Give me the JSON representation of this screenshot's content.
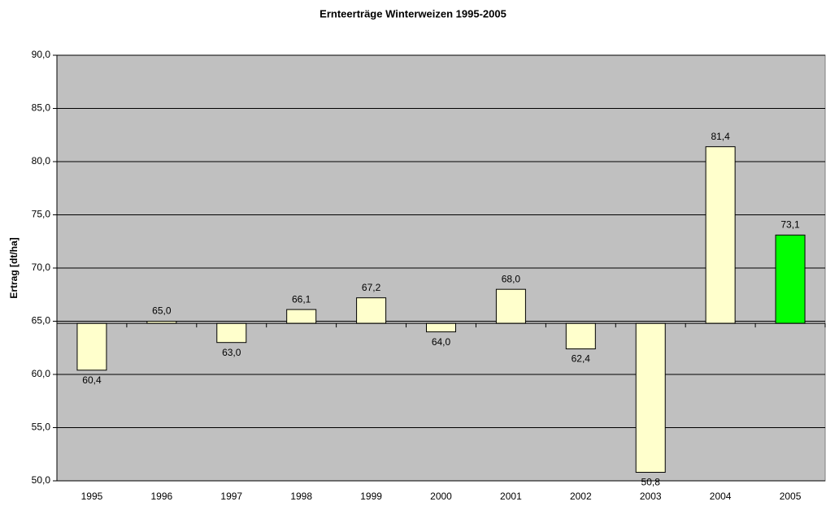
{
  "chart_data": {
    "type": "bar",
    "title": "Ernteerträge Winterweizen 1995-2005",
    "y_label": "Ertrag [dt/ha]",
    "categories": [
      "1995",
      "1996",
      "1997",
      "1998",
      "1999",
      "2000",
      "2001",
      "2002",
      "2003",
      "2004",
      "2005"
    ],
    "values": [
      60.4,
      65.0,
      63.0,
      66.1,
      67.2,
      64.0,
      68.0,
      62.4,
      50.8,
      81.4,
      73.1
    ],
    "value_labels": [
      "60,4",
      "65,0",
      "63,0",
      "66,1",
      "67,2",
      "64,0",
      "68,0",
      "62,4",
      "50,8",
      "81,4",
      "73,1"
    ],
    "colors": [
      "#ffffcc",
      "#ffffcc",
      "#ffffcc",
      "#ffffcc",
      "#ffffcc",
      "#ffffcc",
      "#ffffcc",
      "#ffffcc",
      "#ffffcc",
      "#ffffcc",
      "#00ff00"
    ],
    "x_axis_crosses": 64.8,
    "ylim": [
      50,
      90
    ],
    "yticks": [
      {
        "value": 50,
        "label": "50,0"
      },
      {
        "value": 55,
        "label": "55,0"
      },
      {
        "value": 60,
        "label": "60,0"
      },
      {
        "value": 65,
        "label": "65,0"
      },
      {
        "value": 70,
        "label": "70,0"
      },
      {
        "value": 75,
        "label": "75,0"
      },
      {
        "value": 80,
        "label": "80,0"
      },
      {
        "value": 85,
        "label": "85,0"
      },
      {
        "value": 90,
        "label": "90,0"
      }
    ],
    "grid": true,
    "plot_background": "#c0c0c0"
  }
}
